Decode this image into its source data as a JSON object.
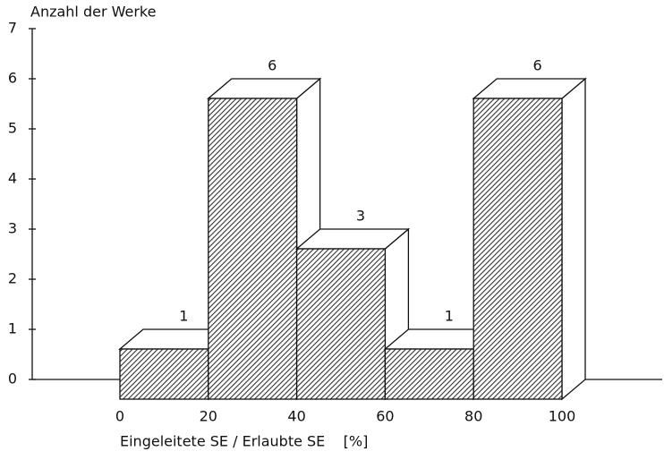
{
  "chart_data": {
    "type": "histogram",
    "title": "Anzahl der Werke",
    "x_label": "Eingeleitete SE / Erlaubte SE    [%]",
    "bins": [
      0,
      20,
      40,
      60,
      80,
      100
    ],
    "values": [
      1,
      6,
      3,
      1,
      6
    ],
    "xlim": [
      0,
      100
    ],
    "xticks": [
      0,
      20,
      40,
      60,
      80,
      100
    ],
    "ylim": [
      0,
      7
    ],
    "yticks": [
      0,
      1,
      2,
      3,
      4,
      5,
      6,
      7
    ],
    "color": "#333333"
  }
}
